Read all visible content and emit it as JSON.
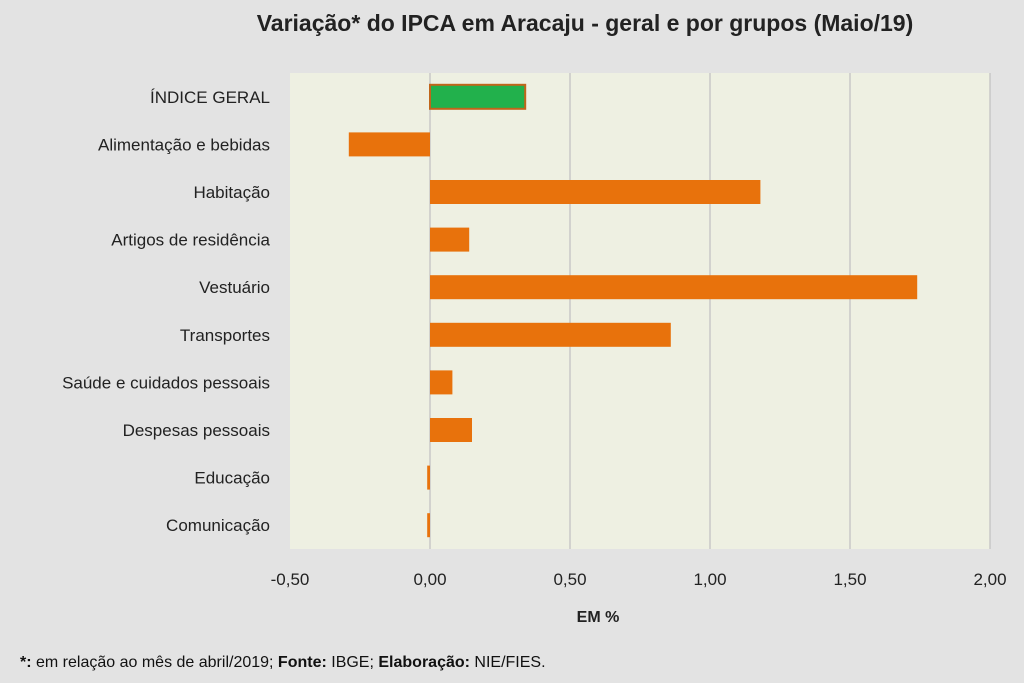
{
  "chart_data": {
    "type": "bar",
    "orientation": "horizontal",
    "title": "Variação* do IPCA em Aracaju - geral e por grupos (Maio/19)",
    "xlabel": "EM %",
    "ylabel": "",
    "xlim": [
      -0.5,
      2.0
    ],
    "xticks": [
      -0.5,
      0.0,
      0.5,
      1.0,
      1.5,
      2.0
    ],
    "xtick_labels": [
      "-0,50",
      "0,00",
      "0,50",
      "1,00",
      "1,50",
      "2,00"
    ],
    "grid": "vertical",
    "legend": "none",
    "categories": [
      "ÍNDICE GERAL",
      "Alimentação e bebidas",
      "Habitação",
      "Artigos de residência",
      "Vestuário",
      "Transportes",
      "Saúde e cuidados pessoais",
      "Despesas pessoais",
      "Educação",
      "Comunicação"
    ],
    "values": [
      0.34,
      -0.29,
      1.18,
      0.14,
      1.74,
      0.86,
      0.08,
      0.15,
      -0.01,
      -0.01
    ],
    "colors": {
      "highlight": "#22b14c",
      "default": "#e8720c",
      "plot_background": "#eef0e2",
      "grid": "#c8c8c8"
    }
  },
  "footnote": {
    "star": "*:",
    "text1": " em relação ao mês de abril/2019; ",
    "source_label": "Fonte:",
    "text2": " IBGE; ",
    "elab_label": "Elaboração:",
    "text3": " NIE/FIES."
  }
}
